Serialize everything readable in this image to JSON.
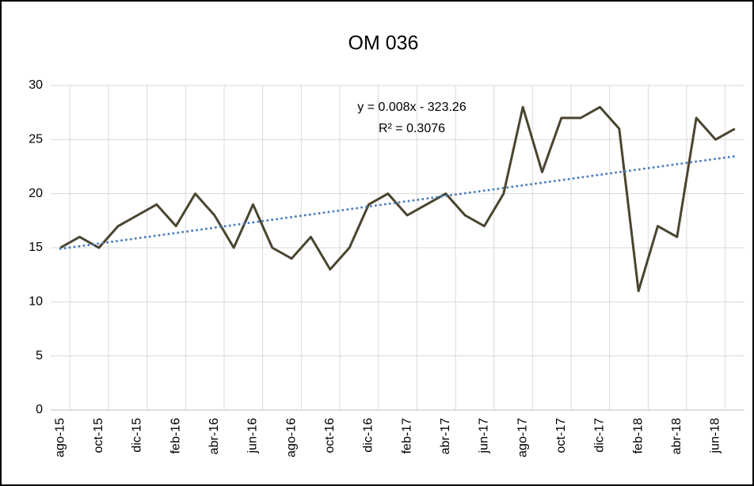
{
  "chart_data": {
    "type": "line",
    "title": "OM 036",
    "categories": [
      "ago-15",
      null,
      "oct-15",
      null,
      "dic-15",
      null,
      "feb-16",
      null,
      "abr-16",
      null,
      "jun-16",
      null,
      "ago-16",
      null,
      "oct-16",
      null,
      "dic-16",
      null,
      "feb-17",
      null,
      "abr-17",
      null,
      "jun-17",
      null,
      "ago-17",
      null,
      "oct-17",
      null,
      "dic-17",
      null,
      "feb-18",
      null,
      "abr-18",
      null,
      "jun-18",
      null
    ],
    "series": [
      {
        "color": "#4a4530",
        "values": [
          15,
          16,
          15,
          17,
          18,
          19,
          17,
          20,
          18,
          15,
          19,
          15,
          14,
          16,
          13,
          15,
          19,
          20,
          18,
          19,
          20,
          18,
          17,
          20,
          28,
          22,
          27,
          27,
          28,
          26,
          11,
          17,
          16,
          27,
          25,
          26
        ]
      }
    ],
    "trendline": {
      "color": "#4f81bd",
      "values": [
        14.9,
        23.5
      ],
      "equation": "y = 0.008x - 323.26",
      "r_squared": "R² = 0.3076"
    },
    "ylim": [
      0,
      30
    ],
    "yticks": [
      0,
      5,
      10,
      15,
      20,
      25,
      30
    ],
    "grid": true
  }
}
